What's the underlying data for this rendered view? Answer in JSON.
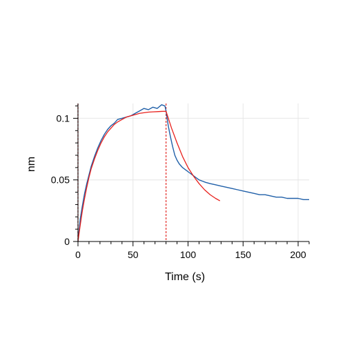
{
  "chart_data": {
    "type": "line",
    "title": "",
    "xlabel": "Time (s)",
    "ylabel": "nm",
    "xlim": [
      0,
      210
    ],
    "ylim": [
      0,
      0.112
    ],
    "xticks": [
      0,
      50,
      100,
      150,
      200
    ],
    "xtick_labels": [
      "0",
      "50",
      "100",
      "150",
      "200"
    ],
    "yticks": [
      0,
      0.05,
      0.1
    ],
    "ytick_labels": [
      "0",
      "0.05",
      "0.1"
    ],
    "grid": true,
    "legend": "none",
    "markers": [
      {
        "x": 0,
        "color": "#c62828"
      },
      {
        "x": 80,
        "color": "#e53935"
      }
    ],
    "series": [
      {
        "color": "#1f5fa8",
        "x": [
          0,
          2,
          4,
          6,
          8,
          10,
          12,
          15,
          18,
          21,
          24,
          27,
          30,
          33,
          36,
          40,
          44,
          48,
          52,
          56,
          60,
          64,
          68,
          72,
          76,
          79,
          80,
          82,
          84,
          86,
          88,
          90,
          92,
          95,
          98,
          101,
          104,
          107,
          110,
          113,
          116,
          120,
          125,
          130,
          135,
          140,
          145,
          150,
          155,
          160,
          165,
          170,
          175,
          180,
          185,
          190,
          195,
          200,
          205,
          210
        ],
        "y": [
          0.0,
          0.018,
          0.029,
          0.039,
          0.047,
          0.054,
          0.061,
          0.069,
          0.076,
          0.082,
          0.087,
          0.091,
          0.094,
          0.096,
          0.099,
          0.1,
          0.101,
          0.102,
          0.104,
          0.106,
          0.108,
          0.107,
          0.109,
          0.108,
          0.111,
          0.11,
          0.106,
          0.094,
          0.085,
          0.077,
          0.07,
          0.066,
          0.063,
          0.06,
          0.058,
          0.056,
          0.054,
          0.052,
          0.05,
          0.049,
          0.048,
          0.047,
          0.046,
          0.045,
          0.044,
          0.043,
          0.042,
          0.041,
          0.04,
          0.039,
          0.038,
          0.038,
          0.037,
          0.036,
          0.036,
          0.035,
          0.035,
          0.035,
          0.034,
          0.034
        ]
      },
      {
        "color": "#e8201c",
        "x": [
          0,
          2,
          4,
          6,
          8,
          10,
          12,
          15,
          18,
          21,
          24,
          27,
          30,
          33,
          36,
          40,
          44,
          48,
          52,
          56,
          60,
          64,
          68,
          72,
          76,
          80,
          85,
          90,
          95,
          100,
          105,
          110,
          115,
          120,
          125,
          129
        ],
        "y": [
          0.0,
          0.013,
          0.025,
          0.035,
          0.044,
          0.052,
          0.059,
          0.067,
          0.074,
          0.08,
          0.085,
          0.089,
          0.092,
          0.095,
          0.097,
          0.099,
          0.101,
          0.102,
          0.103,
          0.104,
          0.1045,
          0.105,
          0.1052,
          0.1054,
          0.1056,
          0.1057,
          0.092,
          0.08,
          0.069,
          0.06,
          0.053,
          0.047,
          0.042,
          0.038,
          0.035,
          0.033
        ]
      }
    ]
  }
}
